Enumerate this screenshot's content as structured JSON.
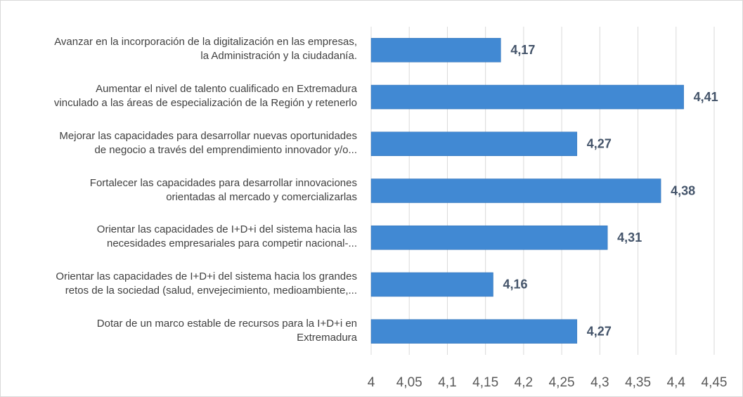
{
  "chart_data": {
    "type": "bar",
    "orientation": "horizontal",
    "categories": [
      "Avanzar en la incorporación de la digitalización en las empresas,\nla Administración y la ciudadanía.",
      "Aumentar el nivel de talento cualificado en Extremadura\nvinculado a las áreas de especialización de la Región y retenerlo",
      "Mejorar las capacidades para desarrollar nuevas oportunidades\nde negocio a través del emprendimiento innovador y/o...",
      "Fortalecer las capacidades para desarrollar innovaciones\norientadas al mercado y comercializarlas",
      "Orientar las capacidades de I+D+i del sistema hacia las\nnecesidades empresariales para competir nacional-...",
      "Orientar las capacidades de I+D+i del sistema hacia los grandes\nretos de la sociedad (salud, envejecimiento, medioambiente,...",
      "Dotar de un marco estable de recursos para la I+D+i en\nExtremadura"
    ],
    "values": [
      4.17,
      4.41,
      4.27,
      4.38,
      4.31,
      4.16,
      4.27
    ],
    "value_labels": [
      "4,17",
      "4,41",
      "4,27",
      "4,38",
      "4,31",
      "4,16",
      "4,27"
    ],
    "color": "#4189d3",
    "xlim": [
      4,
      4.45
    ],
    "xticks": [
      4,
      {
        "value": 4.05,
        "label": "4,05"
      },
      {
        "value": 4.1,
        "label": "4,1"
      },
      {
        "value": 4.15,
        "label": "4,15"
      },
      {
        "value": 4.2,
        "label": "4,2"
      },
      {
        "value": 4.25,
        "label": "4,25"
      },
      {
        "value": 4.3,
        "label": "4,3"
      },
      {
        "value": 4.35,
        "label": "4,35"
      },
      {
        "value": 4.4,
        "label": "4,4"
      },
      {
        "value": 4.45,
        "label": "4,45"
      }
    ],
    "grid": true
  }
}
